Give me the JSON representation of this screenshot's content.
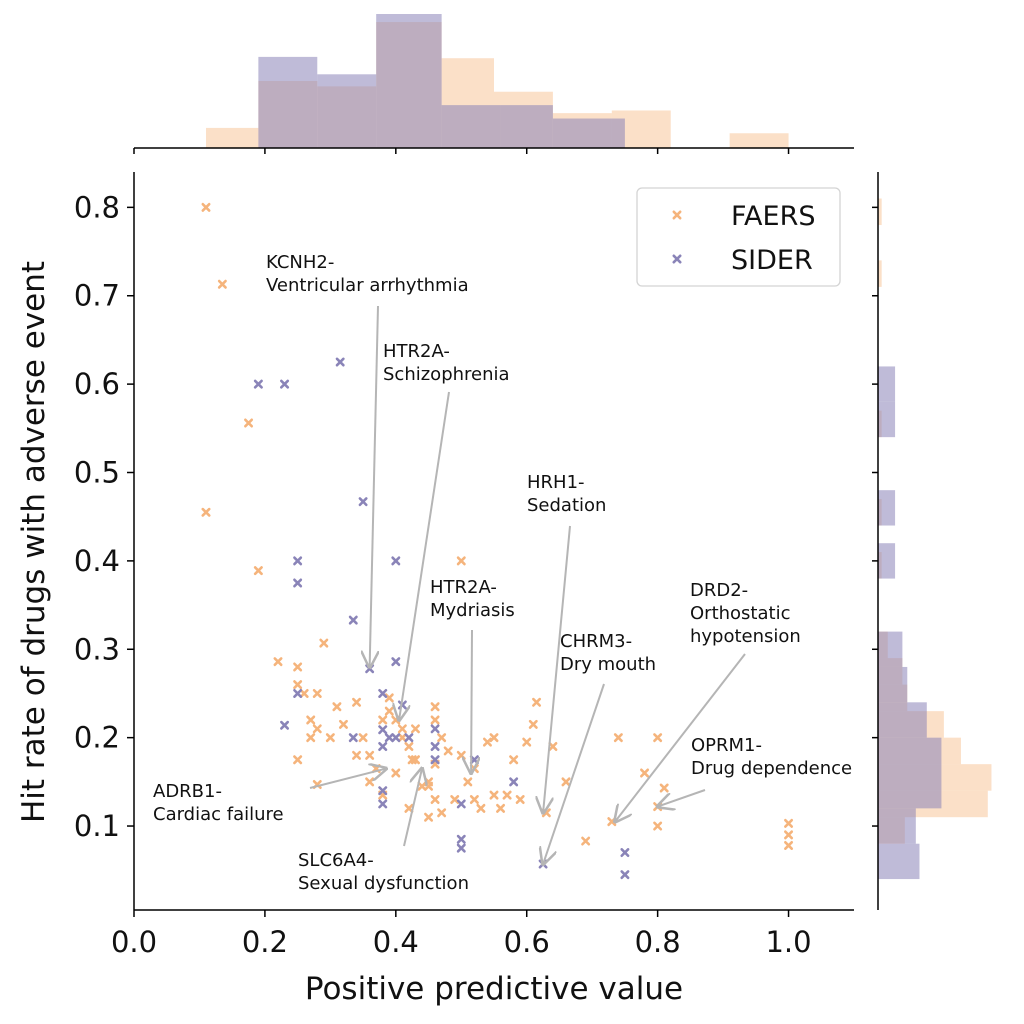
{
  "chart_data": {
    "type": "scatter",
    "xlabel": "Positive predictive value",
    "ylabel": "Hit rate of drugs with adverse event",
    "xlim": [
      0.0,
      1.1
    ],
    "ylim": [
      0.005,
      0.84
    ],
    "xticks": [
      "0.0",
      "0.2",
      "0.4",
      "0.6",
      "0.8",
      "1.0"
    ],
    "yticks": [
      "0.1",
      "0.2",
      "0.3",
      "0.4",
      "0.5",
      "0.6",
      "0.7",
      "0.8"
    ],
    "grid": false,
    "legend_position": "top-right",
    "series": [
      {
        "name": "FAERS",
        "color": "#f5b47c",
        "marker": "x",
        "points": [
          [
            0.11,
            0.8
          ],
          [
            0.135,
            0.713
          ],
          [
            0.175,
            0.556
          ],
          [
            0.11,
            0.455
          ],
          [
            0.19,
            0.389
          ],
          [
            0.22,
            0.286
          ],
          [
            0.25,
            0.28
          ],
          [
            0.25,
            0.26
          ],
          [
            0.26,
            0.25
          ],
          [
            0.28,
            0.25
          ],
          [
            0.29,
            0.307
          ],
          [
            0.25,
            0.175
          ],
          [
            0.27,
            0.22
          ],
          [
            0.28,
            0.21
          ],
          [
            0.27,
            0.2
          ],
          [
            0.3,
            0.2
          ],
          [
            0.32,
            0.215
          ],
          [
            0.34,
            0.24
          ],
          [
            0.35,
            0.2
          ],
          [
            0.36,
            0.18
          ],
          [
            0.34,
            0.18
          ],
          [
            0.36,
            0.15
          ],
          [
            0.37,
            0.165
          ],
          [
            0.38,
            0.22
          ],
          [
            0.39,
            0.245
          ],
          [
            0.39,
            0.23
          ],
          [
            0.4,
            0.22
          ],
          [
            0.41,
            0.21
          ],
          [
            0.41,
            0.2
          ],
          [
            0.42,
            0.19
          ],
          [
            0.425,
            0.175
          ],
          [
            0.43,
            0.175
          ],
          [
            0.45,
            0.15
          ],
          [
            0.45,
            0.145
          ],
          [
            0.46,
            0.235
          ],
          [
            0.46,
            0.22
          ],
          [
            0.47,
            0.2
          ],
          [
            0.48,
            0.185
          ],
          [
            0.46,
            0.13
          ],
          [
            0.45,
            0.11
          ],
          [
            0.47,
            0.115
          ],
          [
            0.5,
            0.4
          ],
          [
            0.5,
            0.18
          ],
          [
            0.51,
            0.15
          ],
          [
            0.52,
            0.13
          ],
          [
            0.53,
            0.12
          ],
          [
            0.55,
            0.2
          ],
          [
            0.55,
            0.135
          ],
          [
            0.57,
            0.135
          ],
          [
            0.58,
            0.175
          ],
          [
            0.59,
            0.13
          ],
          [
            0.6,
            0.195
          ],
          [
            0.61,
            0.215
          ],
          [
            0.615,
            0.24
          ],
          [
            0.63,
            0.115
          ],
          [
            0.66,
            0.15
          ],
          [
            0.64,
            0.19
          ],
          [
            0.73,
            0.105
          ],
          [
            0.74,
            0.2
          ],
          [
            0.78,
            0.16
          ],
          [
            0.8,
            0.2
          ],
          [
            0.8,
            0.122
          ],
          [
            0.81,
            0.143
          ],
          [
            0.8,
            0.1
          ],
          [
            1.0,
            0.103
          ],
          [
            1.0,
            0.09
          ],
          [
            1.0,
            0.078
          ],
          [
            0.69,
            0.083
          ],
          [
            0.28,
            0.147
          ],
          [
            0.42,
            0.12
          ],
          [
            0.38,
            0.135
          ],
          [
            0.44,
            0.145
          ],
          [
            0.49,
            0.13
          ],
          [
            0.56,
            0.12
          ],
          [
            0.52,
            0.165
          ],
          [
            0.54,
            0.195
          ],
          [
            0.31,
            0.235
          ],
          [
            0.4,
            0.16
          ],
          [
            0.43,
            0.21
          ],
          [
            0.46,
            0.17
          ]
        ]
      },
      {
        "name": "SIDER",
        "color": "#8a84b8",
        "marker": "x",
        "points": [
          [
            0.19,
            0.6
          ],
          [
            0.23,
            0.6
          ],
          [
            0.315,
            0.625
          ],
          [
            0.35,
            0.467
          ],
          [
            0.25,
            0.4
          ],
          [
            0.25,
            0.375
          ],
          [
            0.335,
            0.333
          ],
          [
            0.4,
            0.4
          ],
          [
            0.4,
            0.286
          ],
          [
            0.36,
            0.278
          ],
          [
            0.25,
            0.25
          ],
          [
            0.23,
            0.214
          ],
          [
            0.38,
            0.25
          ],
          [
            0.41,
            0.237
          ],
          [
            0.38,
            0.209
          ],
          [
            0.39,
            0.2
          ],
          [
            0.4,
            0.2
          ],
          [
            0.38,
            0.19
          ],
          [
            0.46,
            0.21
          ],
          [
            0.46,
            0.19
          ],
          [
            0.46,
            0.175
          ],
          [
            0.335,
            0.2
          ],
          [
            0.38,
            0.14
          ],
          [
            0.38,
            0.125
          ],
          [
            0.5,
            0.125
          ],
          [
            0.5,
            0.085
          ],
          [
            0.5,
            0.075
          ],
          [
            0.58,
            0.15
          ],
          [
            0.625,
            0.057
          ],
          [
            0.75,
            0.07
          ],
          [
            0.75,
            0.045
          ],
          [
            0.42,
            0.2
          ],
          [
            0.52,
            0.175
          ]
        ]
      }
    ],
    "annotations": [
      {
        "label_lines": [
          "KCNH2-",
          "Ventricular arrhythmia"
        ],
        "target": [
          0.36,
          0.28
        ]
      },
      {
        "label_lines": [
          "HTR2A-",
          "Schizophrenia"
        ],
        "target": [
          0.405,
          0.22
        ]
      },
      {
        "label_lines": [
          "HRH1-",
          "Sedation"
        ],
        "target": [
          0.625,
          0.115
        ]
      },
      {
        "label_lines": [
          "HTR2A-",
          "Mydriasis"
        ],
        "target": [
          0.515,
          0.16
        ]
      },
      {
        "label_lines": [
          "CHRM3-",
          "Dry mouth"
        ],
        "target": [
          0.625,
          0.057
        ]
      },
      {
        "label_lines": [
          "DRD2-",
          "Orthostatic",
          "hypotension"
        ],
        "target": [
          0.735,
          0.105
        ]
      },
      {
        "label_lines": [
          "OPRM1-",
          "Drug dependence"
        ],
        "target": [
          0.8,
          0.122
        ]
      },
      {
        "label_lines": [
          "ADRB1-",
          "Cardiac failure"
        ],
        "target": [
          0.385,
          0.165
        ]
      },
      {
        "label_lines": [
          "SLC6A4-",
          "Sexual dysfunction"
        ],
        "target": [
          0.44,
          0.165
        ]
      }
    ],
    "marginal_x": {
      "FAERS_bins": [
        [
          0.11,
          0.19,
          0.15
        ],
        [
          0.19,
          0.28,
          0.5
        ],
        [
          0.28,
          0.37,
          0.46
        ],
        [
          0.37,
          0.47,
          0.94
        ],
        [
          0.47,
          0.55,
          0.67
        ],
        [
          0.55,
          0.64,
          0.42
        ],
        [
          0.64,
          0.73,
          0.26
        ],
        [
          0.73,
          0.82,
          0.28
        ],
        [
          0.91,
          1.0,
          0.11
        ]
      ],
      "SIDER_bins": [
        [
          0.19,
          0.28,
          0.68
        ],
        [
          0.28,
          0.37,
          0.55
        ],
        [
          0.37,
          0.47,
          1.0
        ],
        [
          0.47,
          0.56,
          0.32
        ],
        [
          0.56,
          0.64,
          0.32
        ],
        [
          0.64,
          0.75,
          0.22
        ]
      ]
    },
    "marginal_y": {
      "FAERS_bins": [
        [
          0.08,
          0.11,
          0.22
        ],
        [
          0.11,
          0.14,
          0.9
        ],
        [
          0.14,
          0.17,
          0.93
        ],
        [
          0.17,
          0.2,
          0.68
        ],
        [
          0.2,
          0.23,
          0.54
        ],
        [
          0.23,
          0.26,
          0.24
        ],
        [
          0.26,
          0.29,
          0.2
        ],
        [
          0.29,
          0.32,
          0.08
        ],
        [
          0.38,
          0.41,
          0.03
        ],
        [
          0.44,
          0.47,
          0.03
        ],
        [
          0.54,
          0.57,
          0.03
        ],
        [
          0.71,
          0.74,
          0.03
        ],
        [
          0.78,
          0.81,
          0.03
        ]
      ],
      "SIDER_bins": [
        [
          0.04,
          0.08,
          0.34
        ],
        [
          0.08,
          0.12,
          0.31
        ],
        [
          0.12,
          0.16,
          0.52
        ],
        [
          0.16,
          0.2,
          0.52
        ],
        [
          0.2,
          0.24,
          0.4
        ],
        [
          0.24,
          0.28,
          0.24
        ],
        [
          0.28,
          0.32,
          0.2
        ],
        [
          0.38,
          0.42,
          0.14
        ],
        [
          0.44,
          0.48,
          0.14
        ],
        [
          0.54,
          0.58,
          0.14
        ],
        [
          0.58,
          0.62,
          0.14
        ]
      ]
    }
  }
}
